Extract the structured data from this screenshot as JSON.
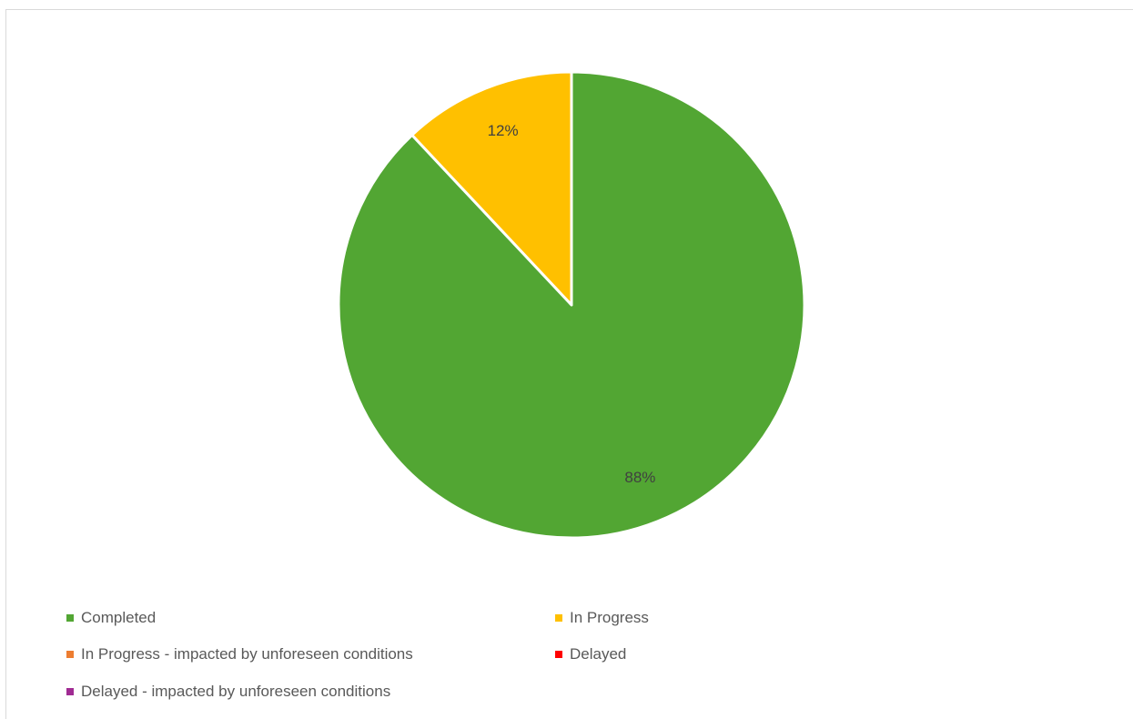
{
  "chart_data": {
    "type": "pie",
    "start_angle_deg": 0,
    "direction": "clockwise",
    "slices": [
      {
        "name": "Completed",
        "value": 88,
        "label": "88%",
        "color": "#52a633"
      },
      {
        "name": "In Progress",
        "value": 12,
        "label": "12%",
        "color": "#ffc000"
      },
      {
        "name": "In Progress -  impacted by unforeseen conditions",
        "value": 0,
        "label": "",
        "color": "#ed7d31"
      },
      {
        "name": "Delayed",
        "value": 0,
        "label": "",
        "color": "#ff0000"
      },
      {
        "name": "Delayed -  impacted by unforeseen conditions",
        "value": 0,
        "label": "",
        "color": "#a02b93"
      }
    ],
    "legend": {
      "placement": "bottom",
      "entries": [
        "Completed",
        "In Progress",
        "In Progress -  impacted by unforeseen conditions",
        "Delayed",
        "Delayed -  impacted by unforeseen conditions"
      ]
    },
    "slice_border_color": "#ffffff"
  }
}
